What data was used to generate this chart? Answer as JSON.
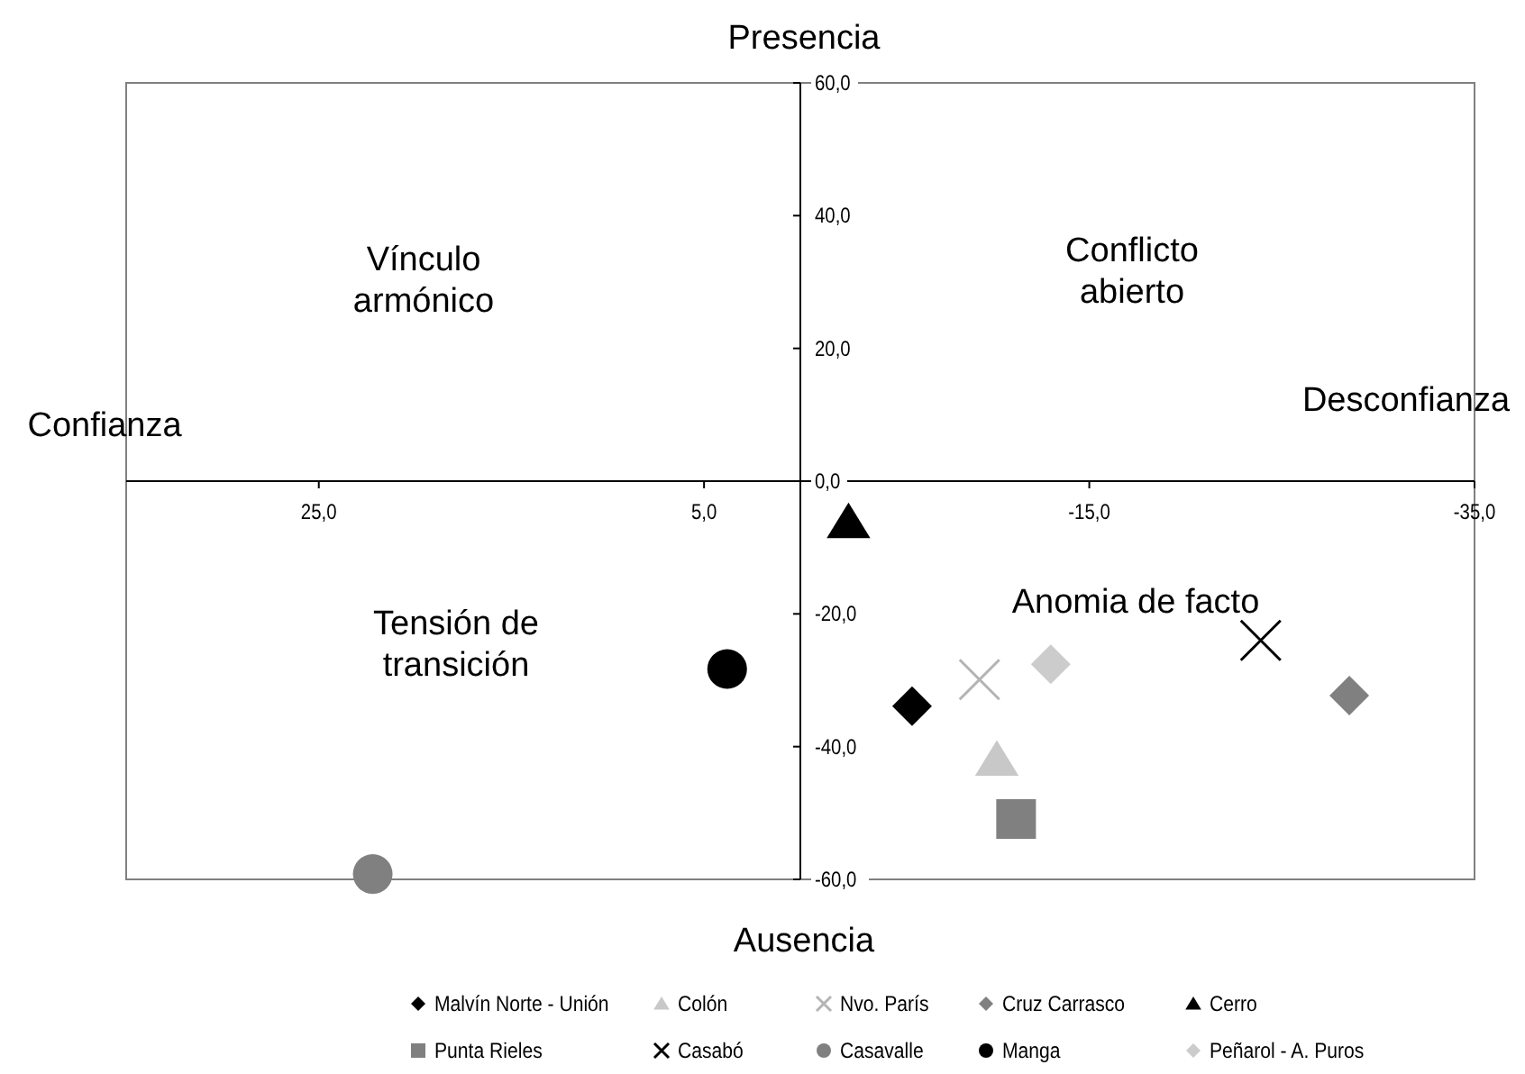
{
  "chart_data": {
    "type": "scatter",
    "xlim": [
      35,
      -35
    ],
    "ylim": [
      -60,
      60
    ],
    "xticks": [
      {
        "value": 25,
        "label": "25,0"
      },
      {
        "value": 5,
        "label": "5,0"
      },
      {
        "value": -15,
        "label": "-15,0"
      },
      {
        "value": -35,
        "label": "-35,0"
      }
    ],
    "yticks": [
      {
        "value": -60,
        "label": "-60,0"
      },
      {
        "value": -40,
        "label": "-40,0"
      },
      {
        "value": -20,
        "label": "-20,0"
      },
      {
        "value": 0,
        "label": "0,0"
      },
      {
        "value": 20,
        "label": "20,0"
      },
      {
        "value": 40,
        "label": "40,0"
      },
      {
        "value": 60,
        "label": "60,0"
      }
    ],
    "grid": false,
    "legend": "bottom",
    "annotations": [
      "Presencia",
      "Ausencia",
      "Confianza",
      "Desconfianza",
      "Vínculo armónico",
      "Conflicto abierto",
      "Tensión de transición",
      "Anomia de facto"
    ],
    "series": [
      {
        "name": "Malvín Norte - Unión",
        "color": "#000000",
        "marker": "diamond",
        "x": [
          -5.8
        ],
        "values": [
          -33.9
        ]
      },
      {
        "name": "Colón",
        "color": "#c8c8c8",
        "marker": "triangle",
        "x": [
          -10.2
        ],
        "values": [
          -42
        ]
      },
      {
        "name": "Nvo. París",
        "color": "#b4b4b4",
        "marker": "cross",
        "x": [
          -9.3
        ],
        "values": [
          -29.9
        ]
      },
      {
        "name": "Cruz Carrasco",
        "color": "#808080",
        "marker": "diamond",
        "x": [
          -28.5
        ],
        "values": [
          -32.3
        ]
      },
      {
        "name": "Cerro",
        "color": "#000000",
        "marker": "triangle",
        "x": [
          -2.5
        ],
        "values": [
          -6.2
        ]
      },
      {
        "name": "Punta Rieles",
        "color": "#808080",
        "marker": "square",
        "x": [
          -11.2
        ],
        "values": [
          -50.9
        ]
      },
      {
        "name": "Casabó",
        "color": "#000000",
        "marker": "cross",
        "x": [
          -23.9
        ],
        "values": [
          -24
        ]
      },
      {
        "name": "Casavalle",
        "color": "#808080",
        "marker": "circle",
        "x": [
          22.2
        ],
        "values": [
          -59.2
        ]
      },
      {
        "name": "Manga",
        "color": "#000000",
        "marker": "circle",
        "x": [
          3.8
        ],
        "values": [
          -28.3
        ]
      },
      {
        "name": "Peñarol - A. Puros",
        "color": "#cccccc",
        "marker": "diamond",
        "x": [
          -13
        ],
        "values": [
          -27.6
        ]
      }
    ]
  }
}
